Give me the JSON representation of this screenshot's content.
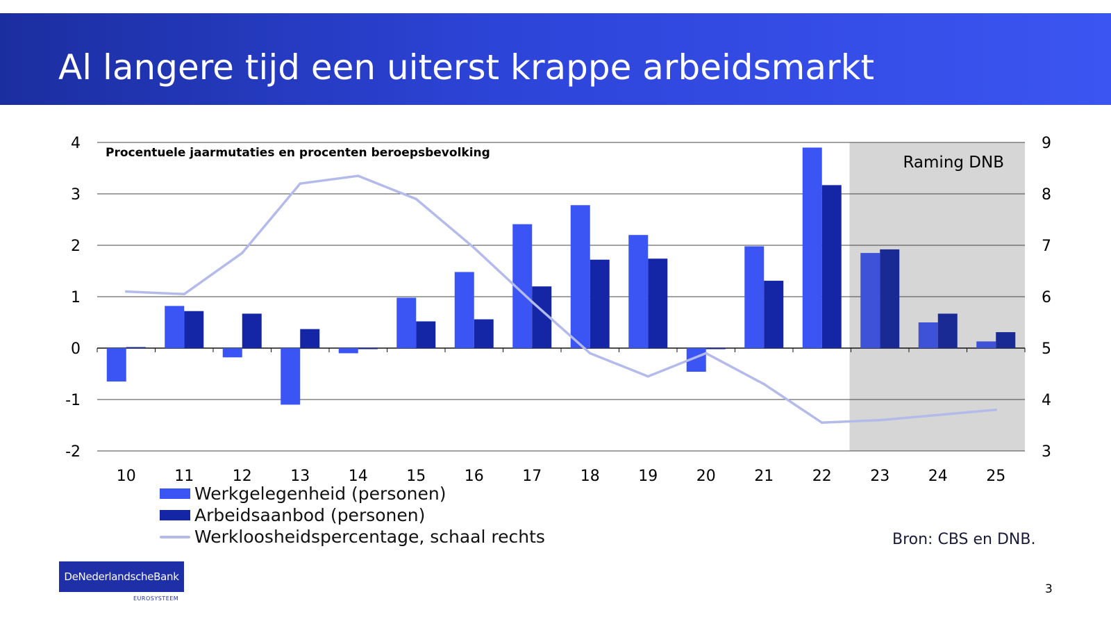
{
  "title": "Al langere tijd een uiterst krappe arbeidsmarkt",
  "source": "Bron: CBS en DNB.",
  "page_number": "3",
  "logo": {
    "name": "DeNederlandscheBank",
    "sub": "EUROSYSTEEM"
  },
  "colors": {
    "werkgelegenheid": "#3a55f3",
    "arbeidsaanbod": "#1426a6",
    "werkloosheid": "#b4bbea",
    "forecast_bg": "#d6d6d6",
    "title_bar": "#2d44d8"
  },
  "chart_data": {
    "type": "bar",
    "subtitle": "Procentuele jaarmutaties en procenten beroepsbevolking",
    "forecast_label": "Raming DNB",
    "forecast_categories": [
      "23",
      "24",
      "25"
    ],
    "categories": [
      "10",
      "11",
      "12",
      "13",
      "14",
      "15",
      "16",
      "17",
      "18",
      "19",
      "20",
      "21",
      "22",
      "23",
      "24",
      "25"
    ],
    "ylim_left": [
      -2,
      4
    ],
    "yticks_left": [
      -2,
      -1,
      0,
      1,
      2,
      3,
      4
    ],
    "ylim_right": [
      3,
      9
    ],
    "yticks_right": [
      3,
      4,
      5,
      6,
      7,
      8,
      9
    ],
    "grid": true,
    "legend_position": "bottom-left",
    "series": [
      {
        "name": "Werkgelegenheid (personen)",
        "kind": "bar",
        "axis": "left",
        "values": [
          -0.65,
          0.82,
          -0.18,
          -1.1,
          -0.1,
          0.98,
          1.48,
          2.41,
          2.78,
          2.2,
          -0.46,
          1.98,
          3.9,
          1.85,
          0.5,
          0.13
        ]
      },
      {
        "name": "Arbeidsaanbod (personen)",
        "kind": "bar",
        "axis": "left",
        "values": [
          0.02,
          0.72,
          0.67,
          0.37,
          -0.02,
          0.52,
          0.56,
          1.2,
          1.72,
          1.74,
          -0.02,
          1.31,
          3.17,
          1.92,
          0.67,
          0.31
        ]
      },
      {
        "name": "Werkloosheidspercentage, schaal rechts",
        "kind": "line",
        "axis": "right",
        "values": [
          6.1,
          6.05,
          6.85,
          8.2,
          8.35,
          7.9,
          6.95,
          5.9,
          4.9,
          4.45,
          4.9,
          4.3,
          3.55,
          3.6,
          3.7,
          3.8
        ]
      }
    ]
  }
}
